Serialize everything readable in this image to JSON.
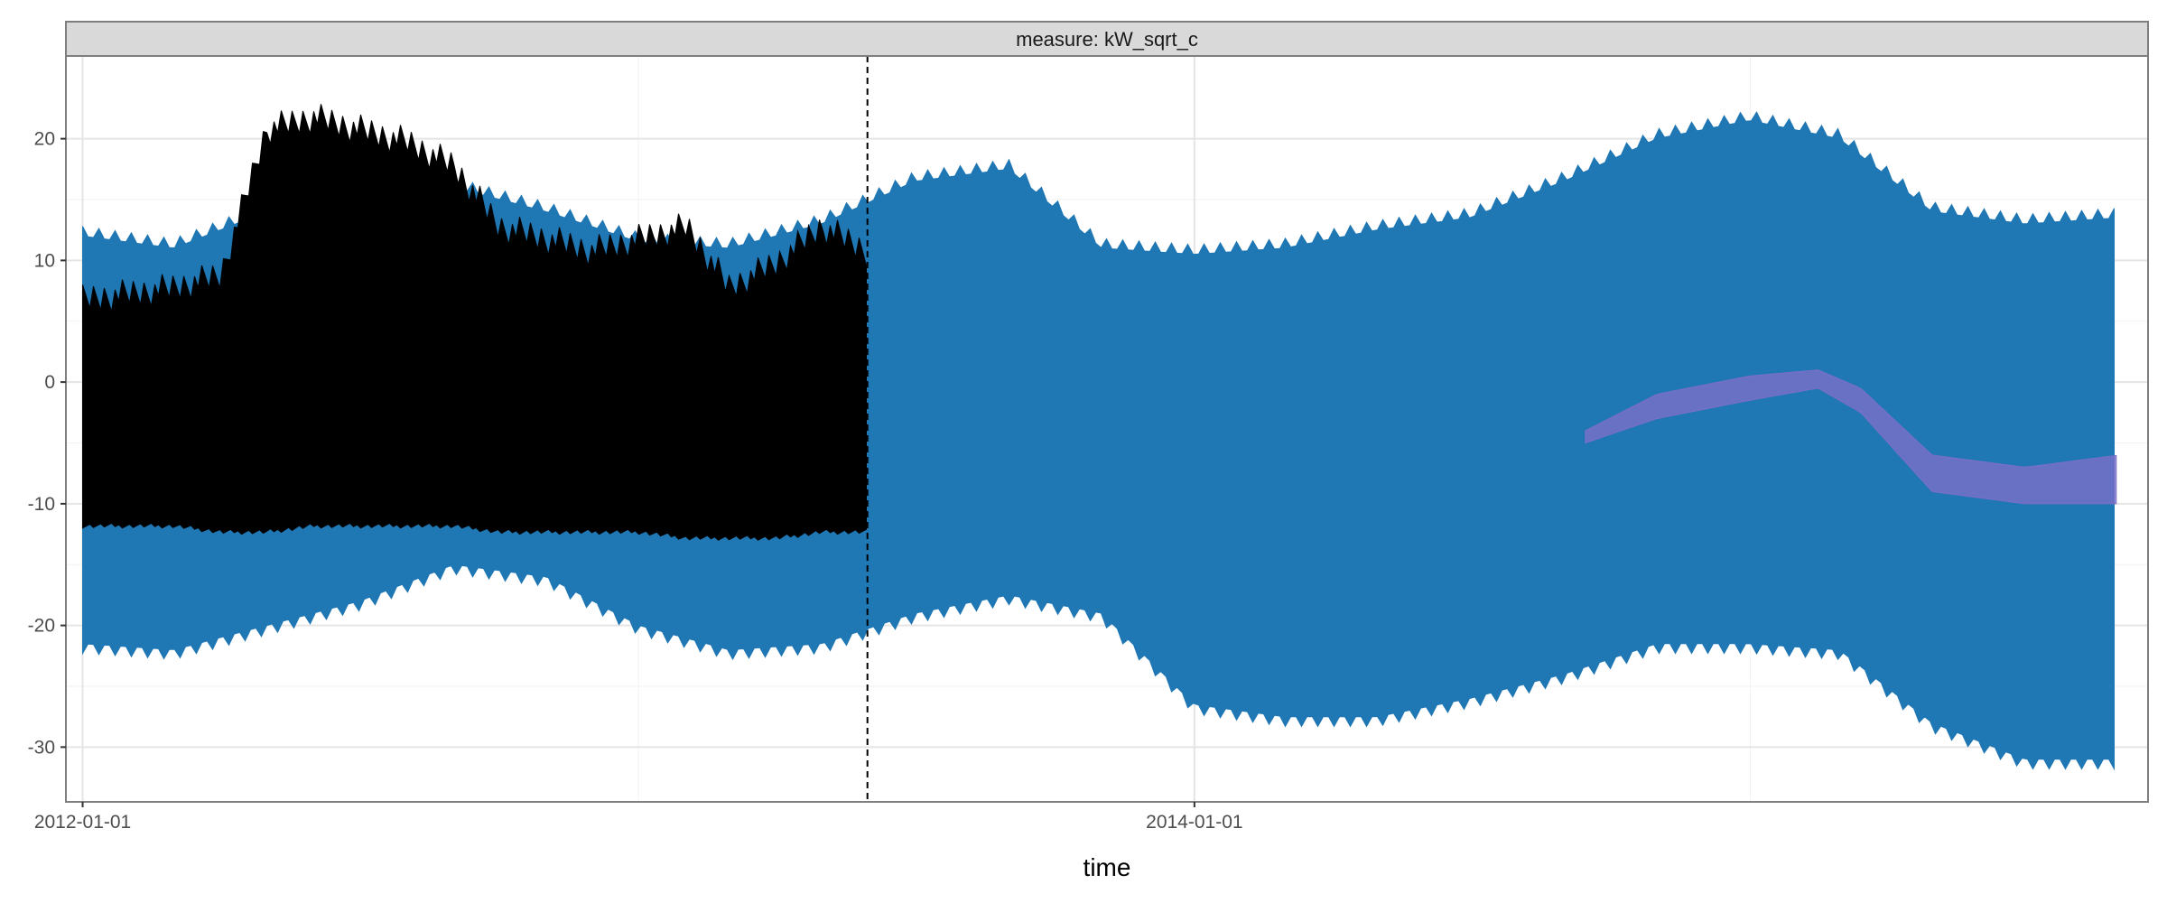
{
  "chart_data": {
    "type": "line",
    "facet_label": "measure: kW_sqrt_c",
    "xlabel": "time",
    "ylabel": "",
    "x_axis_type": "date",
    "xlim": [
      "2011-12-21",
      "2015-09-20"
    ],
    "ylim": [
      -34.5,
      26.8
    ],
    "x_ticks": [
      {
        "value": "2012-01-01",
        "label": "2012-01-01"
      },
      {
        "value": "2014-01-01",
        "label": "2014-01-01"
      }
    ],
    "y_ticks": [
      {
        "value": 20,
        "label": "20"
      },
      {
        "value": 10,
        "label": "10"
      },
      {
        "value": 0,
        "label": "0"
      },
      {
        "value": -10,
        "label": "-10"
      },
      {
        "value": -20,
        "label": "-20"
      },
      {
        "value": -30,
        "label": "-30"
      }
    ],
    "grid": true,
    "forecast_start": "2013-05-31",
    "series": [
      {
        "role": "prediction_interval_band",
        "color": "#1f77b4",
        "x": [
          "2012-01-01",
          "2012-03-01",
          "2012-05-01",
          "2012-07-01",
          "2012-09-01",
          "2012-11-01",
          "2013-01-01",
          "2013-03-01",
          "2013-05-01",
          "2013-07-01",
          "2013-09-01",
          "2013-11-01",
          "2014-01-01",
          "2014-03-01",
          "2014-05-01",
          "2014-07-01",
          "2014-09-01",
          "2014-11-01",
          "2015-01-01",
          "2015-03-01",
          "2015-05-01",
          "2015-07-01",
          "2015-09-01"
        ],
        "upper": [
          12,
          11,
          14,
          16,
          16,
          14,
          11.5,
          11,
          13,
          16.5,
          17.5,
          11,
          10.5,
          11,
          12.5,
          13.5,
          16.5,
          20,
          21.5,
          20,
          14,
          13,
          13.5
        ],
        "lower": [
          -21.5,
          -22,
          -20,
          -18,
          -15,
          -16,
          -20,
          -22,
          -21.5,
          -19,
          -17.5,
          -19,
          -26.5,
          -27.5,
          -27.5,
          -26,
          -24,
          -21.5,
          -21.5,
          -22,
          -28,
          -31,
          -31
        ]
      },
      {
        "role": "prediction_median",
        "color": "#7b6fc8",
        "x": [
          "2014-09-15",
          "2014-11-01",
          "2015-01-01",
          "2015-02-15",
          "2015-03-15",
          "2015-05-01",
          "2015-07-01",
          "2015-09-01"
        ],
        "upper": [
          -4,
          -1,
          0.5,
          1,
          -0.5,
          -6,
          -7,
          -6
        ],
        "lower": [
          -5,
          -3,
          -1.5,
          -0.5,
          -2.5,
          -9,
          -10,
          -10
        ]
      },
      {
        "role": "observed",
        "color": "#000000",
        "x": [
          "2012-01-01",
          "2012-02-01",
          "2012-03-01",
          "2012-04-01",
          "2012-05-01",
          "2012-06-01",
          "2012-07-01",
          "2012-08-01",
          "2012-09-01",
          "2012-10-01",
          "2012-11-01",
          "2012-12-01",
          "2013-01-01",
          "2013-02-01",
          "2013-03-01",
          "2013-04-01",
          "2013-05-01",
          "2013-05-31"
        ],
        "upper": [
          8,
          8.5,
          9,
          10,
          22,
          23,
          22,
          21,
          19,
          14,
          13,
          12,
          13,
          14,
          9,
          11,
          14,
          12
        ],
        "lower": [
          -12,
          -12,
          -12,
          -12.5,
          -12.5,
          -12,
          -12,
          -12,
          -12,
          -12.5,
          -12.5,
          -12.5,
          -12.5,
          -13,
          -13,
          -13,
          -12.5,
          -12.5
        ]
      }
    ]
  }
}
